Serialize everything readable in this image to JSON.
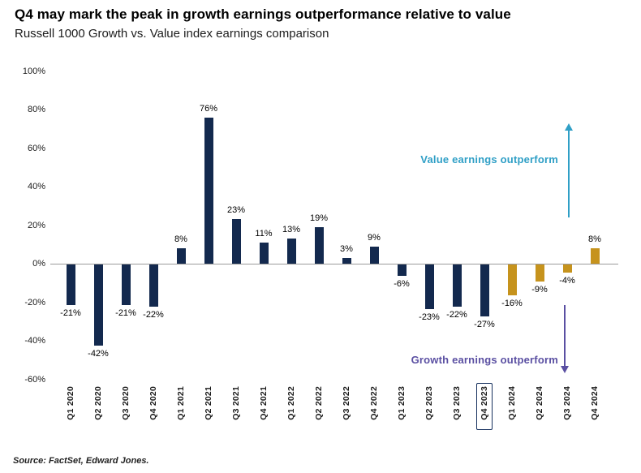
{
  "chart_data": {
    "type": "bar",
    "title": "Q4 may mark the peak in growth earnings outperformance relative to value",
    "subtitle": "Russell 1000 Growth vs. Value index earnings comparison",
    "categories": [
      "Q1 2020",
      "Q2 2020",
      "Q3 2020",
      "Q4 2020",
      "Q1 2021",
      "Q2 2021",
      "Q3 2021",
      "Q4 2021",
      "Q1 2022",
      "Q2 2022",
      "Q3 2022",
      "Q4 2022",
      "Q1 2023",
      "Q2 2023",
      "Q3 2023",
      "Q4 2023",
      "Q1 2024",
      "Q2 2024",
      "Q3 2024",
      "Q4 2024"
    ],
    "values": [
      -21,
      -42,
      -21,
      -22,
      8,
      76,
      23,
      11,
      13,
      19,
      3,
      9,
      -6,
      -23,
      -22,
      -27,
      -16,
      -9,
      -4,
      8
    ],
    "labels": [
      "-21%",
      "-42%",
      "-21%",
      "-22%",
      "8%",
      "76%",
      "23%",
      "11%",
      "13%",
      "19%",
      "3%",
      "9%",
      "-6%",
      "-23%",
      "-22%",
      "-27%",
      "-16%",
      "-9%",
      "-4%",
      "8%"
    ],
    "bar_colors": [
      "#13294e",
      "#13294e",
      "#13294e",
      "#13294e",
      "#13294e",
      "#13294e",
      "#13294e",
      "#13294e",
      "#13294e",
      "#13294e",
      "#13294e",
      "#13294e",
      "#13294e",
      "#13294e",
      "#13294e",
      "#13294e",
      "#c6931d",
      "#c6931d",
      "#c6931d",
      "#c6931d"
    ],
    "highlight_category": "Q4 2023",
    "xlabel": "",
    "ylabel": "",
    "ylim": [
      -60,
      100
    ],
    "yticks": [
      {
        "label": "100%",
        "value": 100
      },
      {
        "label": "80%",
        "value": 80
      },
      {
        "label": "60%",
        "value": 60
      },
      {
        "label": "40%",
        "value": 40
      },
      {
        "label": "20%",
        "value": 20
      },
      {
        "label": "0%",
        "value": 0
      },
      {
        "label": "-20%",
        "value": -20
      },
      {
        "label": "-40%",
        "value": -40
      },
      {
        "label": "-60%",
        "value": -60
      }
    ],
    "grid": false,
    "legend": "none",
    "annotations": [
      {
        "text": "Value earnings outperform",
        "color": "#2f9fc6",
        "arrow": "up"
      },
      {
        "text": "Growth earnings outperform",
        "color": "#5a4fa2",
        "arrow": "down"
      }
    ]
  },
  "footer": {
    "source": "Source: FactSet, Edward Jones."
  }
}
